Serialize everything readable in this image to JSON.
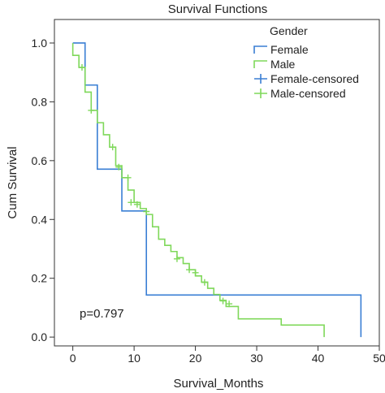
{
  "chart_data": {
    "type": "line",
    "title": "Survival Functions",
    "xlabel": "Survival_Months",
    "ylabel": "Cum Survival",
    "xlim": [
      -3,
      50
    ],
    "ylim": [
      -0.03,
      1.08
    ],
    "xticks": [
      0,
      10,
      20,
      30,
      40,
      50
    ],
    "yticks": [
      0.0,
      0.2,
      0.4,
      0.6,
      0.8,
      1.0
    ],
    "ytick_labels": [
      "0.0",
      "0.2",
      "0.4",
      "0.6",
      "0.8",
      "1.0"
    ],
    "grid": false,
    "legend": {
      "title": "Gender",
      "placement": "top-right",
      "entries": [
        "Female",
        "Male",
        "Female-censored",
        "Male-censored"
      ]
    },
    "annotation": "p=0.797",
    "colors": {
      "female": "#3a7fd4",
      "male": "#7fd85a"
    },
    "series": [
      {
        "name": "Female",
        "color": "#3a7fd4",
        "steps": [
          [
            0,
            1.0
          ],
          [
            2,
            0.857
          ],
          [
            4,
            0.571
          ],
          [
            8,
            0.429
          ],
          [
            12,
            0.143
          ],
          [
            47,
            0.0
          ]
        ],
        "end_x": 47
      },
      {
        "name": "Male",
        "color": "#7fd85a",
        "steps": [
          [
            0,
            1.0
          ],
          [
            0,
            0.958
          ],
          [
            1,
            0.917
          ],
          [
            2,
            0.833
          ],
          [
            3,
            0.771
          ],
          [
            4,
            0.729
          ],
          [
            5,
            0.688
          ],
          [
            6,
            0.646
          ],
          [
            7,
            0.583
          ],
          [
            8,
            0.542
          ],
          [
            9,
            0.5
          ],
          [
            10,
            0.458
          ],
          [
            11,
            0.437
          ],
          [
            12,
            0.417
          ],
          [
            13,
            0.375
          ],
          [
            14,
            0.333
          ],
          [
            15,
            0.312
          ],
          [
            16,
            0.291
          ],
          [
            17,
            0.27
          ],
          [
            18,
            0.25
          ],
          [
            19,
            0.229
          ],
          [
            20,
            0.208
          ],
          [
            21,
            0.187
          ],
          [
            22,
            0.166
          ],
          [
            23,
            0.145
          ],
          [
            24,
            0.125
          ],
          [
            25,
            0.104
          ],
          [
            27,
            0.062
          ],
          [
            34,
            0.041
          ],
          [
            41,
            0.0
          ]
        ],
        "end_x": 41,
        "censored": [
          [
            1.5,
            0.917
          ],
          [
            3,
            0.771
          ],
          [
            6.5,
            0.646
          ],
          [
            7.5,
            0.578
          ],
          [
            9,
            0.542
          ],
          [
            9.5,
            0.458
          ],
          [
            10.5,
            0.451
          ],
          [
            12,
            0.427
          ],
          [
            17,
            0.266
          ],
          [
            19,
            0.229
          ],
          [
            20,
            0.219
          ],
          [
            21.5,
            0.186
          ],
          [
            24.5,
            0.123
          ],
          [
            25.5,
            0.113
          ]
        ]
      }
    ]
  }
}
